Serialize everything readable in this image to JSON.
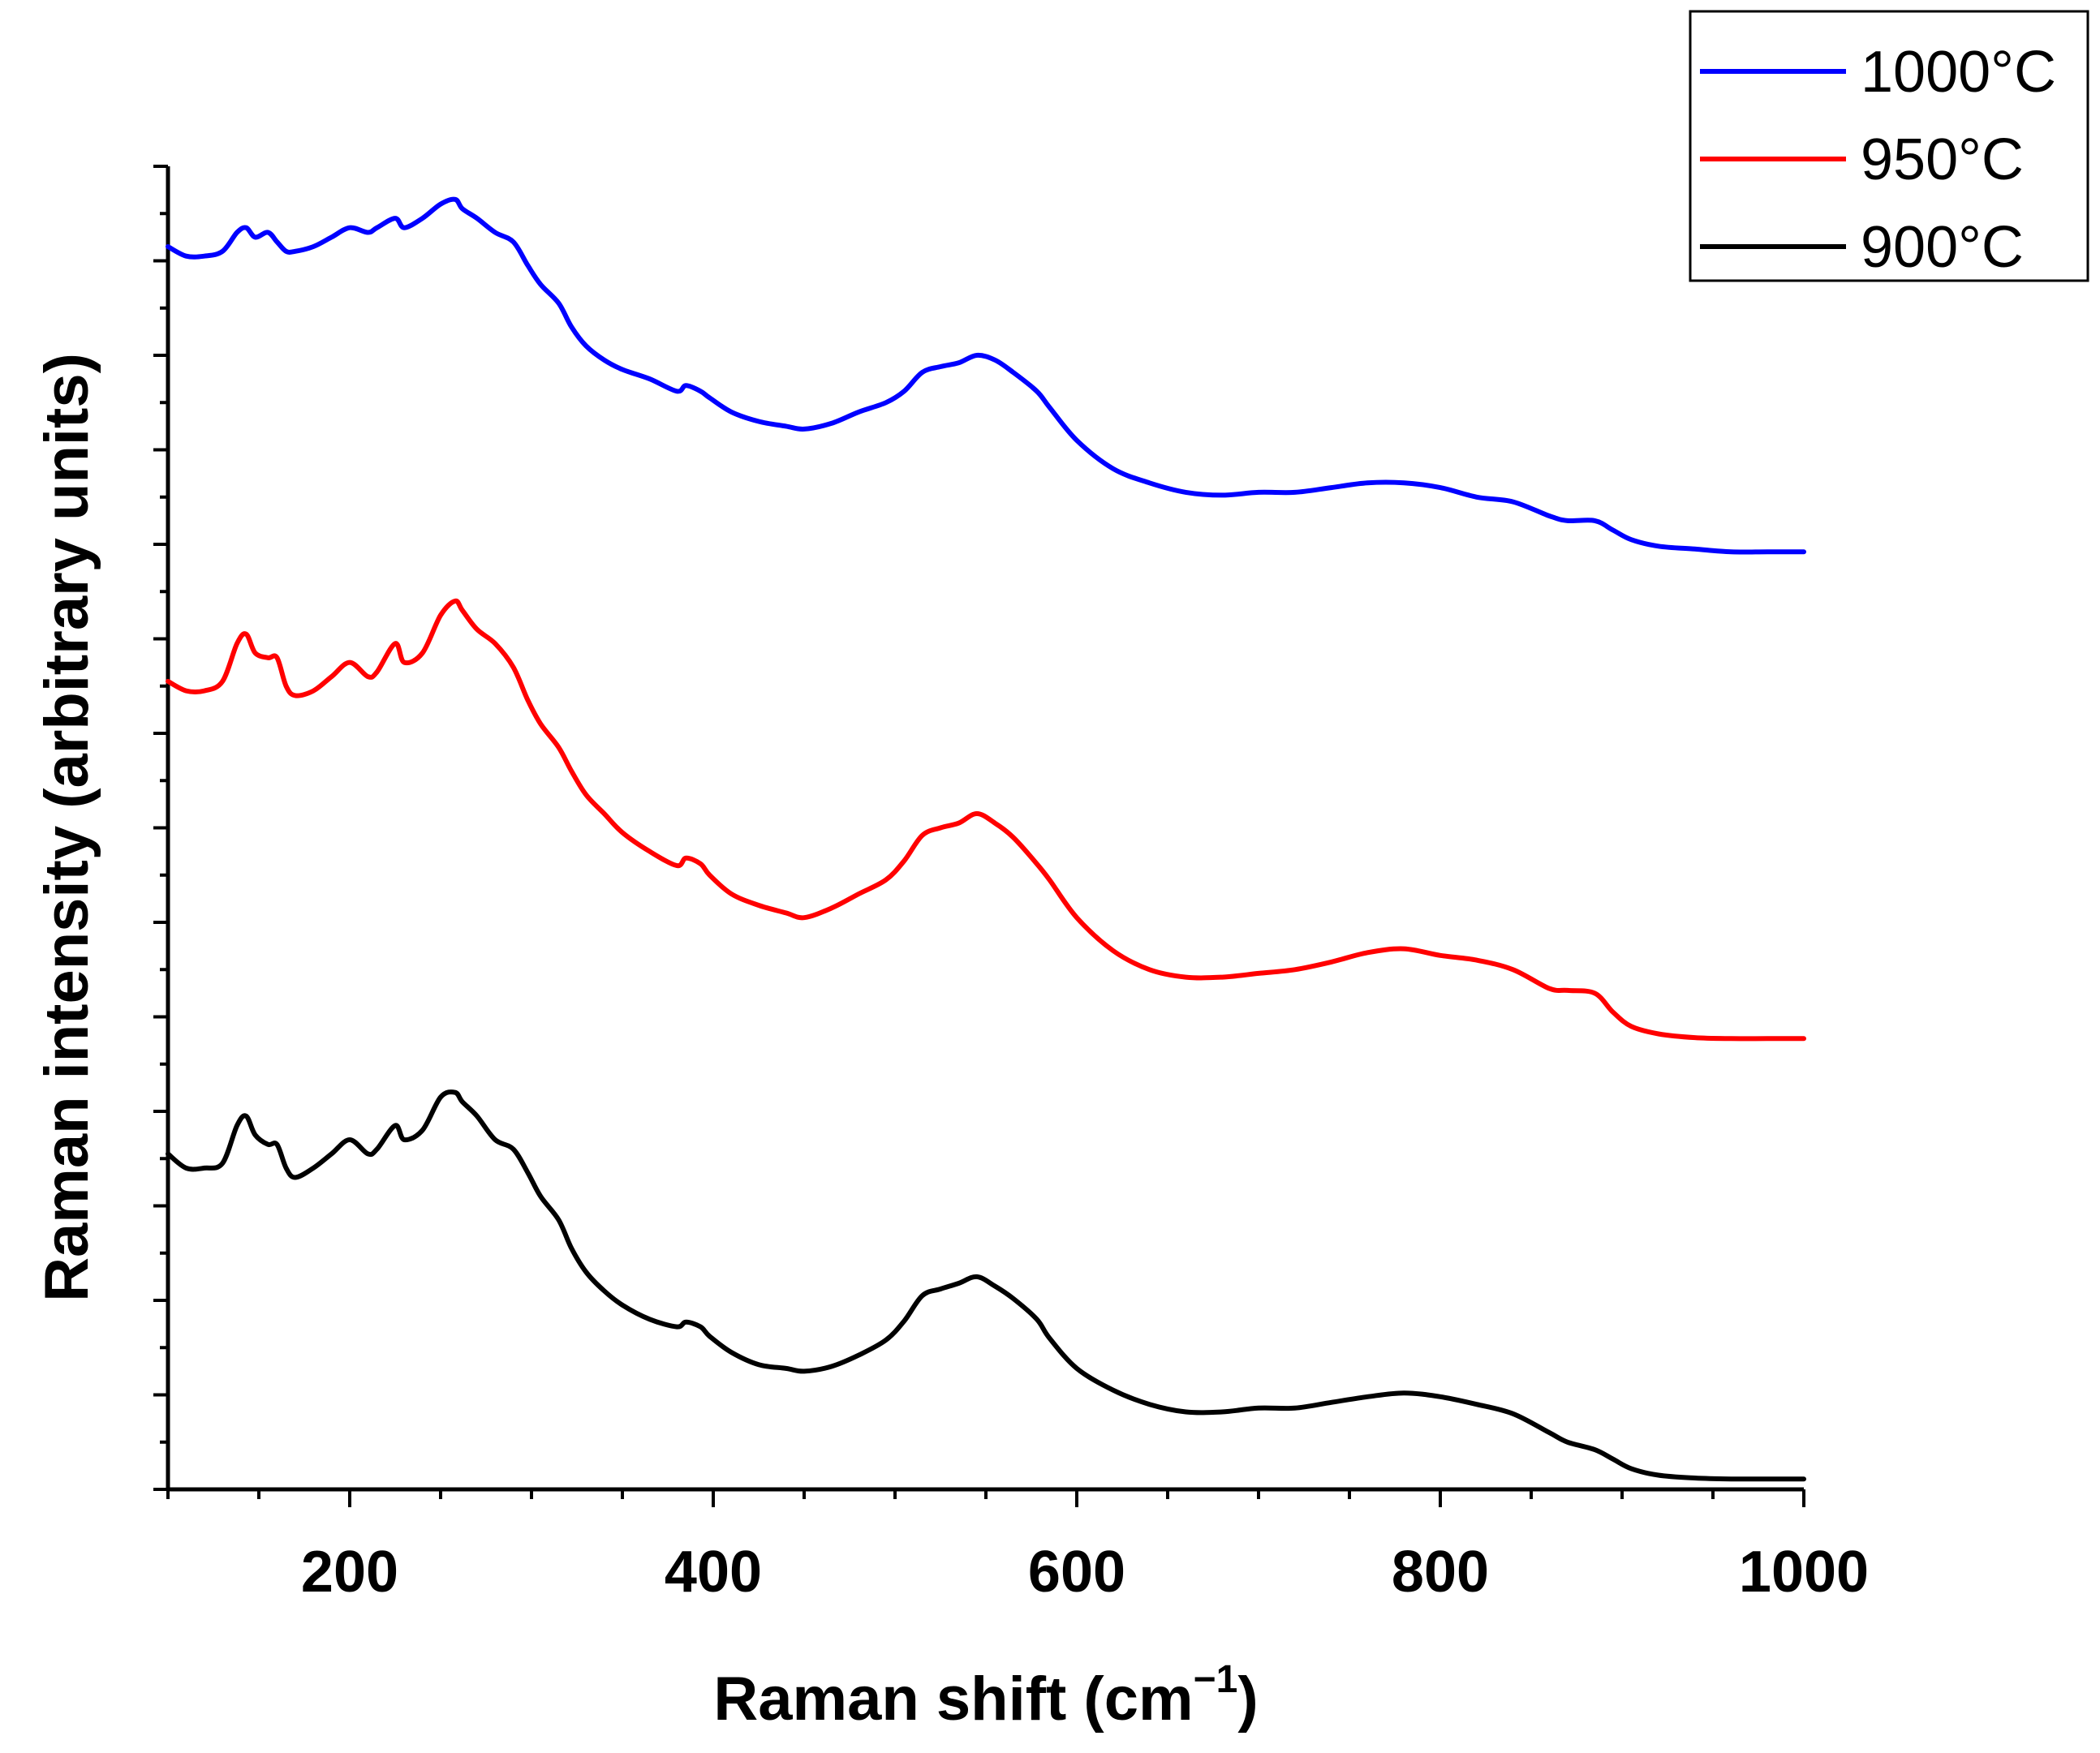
{
  "chart_data": {
    "type": "line",
    "title": "",
    "xlabel": "Raman shift (cm",
    "xlabel_superscript": "−1",
    "xlabel_suffix": ")",
    "ylabel": "Raman intensity (arbitrary units)",
    "xlim": [
      100,
      1000
    ],
    "ylim": [
      0,
      14
    ],
    "grid": false,
    "legend_position": "top-right",
    "x_tick_labels": [
      "200",
      "400",
      "600",
      "800",
      "1000"
    ],
    "x_ticks": [
      200,
      400,
      600,
      800,
      1000
    ],
    "x": [
      100,
      110,
      120,
      130,
      138,
      143,
      148,
      155,
      160,
      165,
      170,
      180,
      190,
      200,
      210,
      215,
      225,
      230,
      240,
      250,
      258,
      262,
      270,
      280,
      290,
      298,
      305,
      315,
      322,
      330,
      340,
      350,
      365,
      380,
      385,
      393,
      398,
      410,
      425,
      440,
      450,
      465,
      480,
      495,
      505,
      515,
      525,
      535,
      545,
      555,
      565,
      578,
      585,
      600,
      620,
      640,
      660,
      680,
      700,
      720,
      740,
      760,
      780,
      800,
      820,
      840,
      860,
      870,
      885,
      895,
      905,
      920,
      940,
      960,
      980,
      1000
    ],
    "series": [
      {
        "name": "1000°C",
        "color": "#0000ff",
        "values": [
          13.15,
          13.05,
          13.05,
          13.1,
          13.3,
          13.35,
          13.25,
          13.3,
          13.2,
          13.1,
          13.1,
          13.15,
          13.25,
          13.35,
          13.3,
          13.35,
          13.45,
          13.35,
          13.45,
          13.6,
          13.65,
          13.55,
          13.45,
          13.3,
          13.2,
          12.95,
          12.75,
          12.55,
          12.3,
          12.1,
          11.95,
          11.85,
          11.75,
          11.62,
          11.68,
          11.62,
          11.55,
          11.4,
          11.3,
          11.25,
          11.22,
          11.28,
          11.4,
          11.5,
          11.62,
          11.82,
          11.88,
          11.92,
          12.0,
          11.95,
          11.82,
          11.62,
          11.45,
          11.1,
          10.8,
          10.65,
          10.55,
          10.52,
          10.55,
          10.55,
          10.6,
          10.65,
          10.65,
          10.6,
          10.5,
          10.45,
          10.3,
          10.25,
          10.25,
          10.15,
          10.05,
          9.98,
          9.95,
          9.92,
          9.92,
          9.92
        ]
      },
      {
        "name": "950°C",
        "color": "#ff0000",
        "values": [
          8.55,
          8.45,
          8.45,
          8.55,
          8.95,
          9.05,
          8.85,
          8.8,
          8.8,
          8.5,
          8.4,
          8.45,
          8.6,
          8.75,
          8.6,
          8.65,
          8.95,
          8.75,
          8.85,
          9.25,
          9.4,
          9.3,
          9.1,
          8.95,
          8.7,
          8.35,
          8.1,
          7.85,
          7.6,
          7.35,
          7.15,
          6.95,
          6.75,
          6.6,
          6.68,
          6.62,
          6.5,
          6.3,
          6.18,
          6.1,
          6.05,
          6.15,
          6.3,
          6.45,
          6.65,
          6.92,
          7.0,
          7.05,
          7.15,
          7.05,
          6.9,
          6.62,
          6.45,
          6.05,
          5.7,
          5.5,
          5.42,
          5.42,
          5.46,
          5.5,
          5.58,
          5.68,
          5.72,
          5.65,
          5.6,
          5.5,
          5.3,
          5.28,
          5.25,
          5.05,
          4.9,
          4.82,
          4.78,
          4.77,
          4.77,
          4.77
        ]
      },
      {
        "name": "900°C",
        "color": "#000000",
        "values": [
          3.55,
          3.4,
          3.4,
          3.45,
          3.85,
          3.95,
          3.75,
          3.65,
          3.65,
          3.4,
          3.3,
          3.4,
          3.55,
          3.7,
          3.55,
          3.6,
          3.85,
          3.7,
          3.8,
          4.15,
          4.2,
          4.1,
          3.95,
          3.7,
          3.6,
          3.35,
          3.1,
          2.85,
          2.55,
          2.3,
          2.1,
          1.95,
          1.8,
          1.72,
          1.77,
          1.72,
          1.62,
          1.45,
          1.32,
          1.28,
          1.25,
          1.3,
          1.42,
          1.58,
          1.78,
          2.05,
          2.12,
          2.18,
          2.25,
          2.15,
          2.02,
          1.8,
          1.6,
          1.28,
          1.05,
          0.9,
          0.82,
          0.82,
          0.86,
          0.86,
          0.92,
          0.98,
          1.02,
          0.98,
          0.9,
          0.8,
          0.6,
          0.5,
          0.42,
          0.32,
          0.22,
          0.15,
          0.12,
          0.11,
          0.11,
          0.11
        ]
      }
    ]
  }
}
